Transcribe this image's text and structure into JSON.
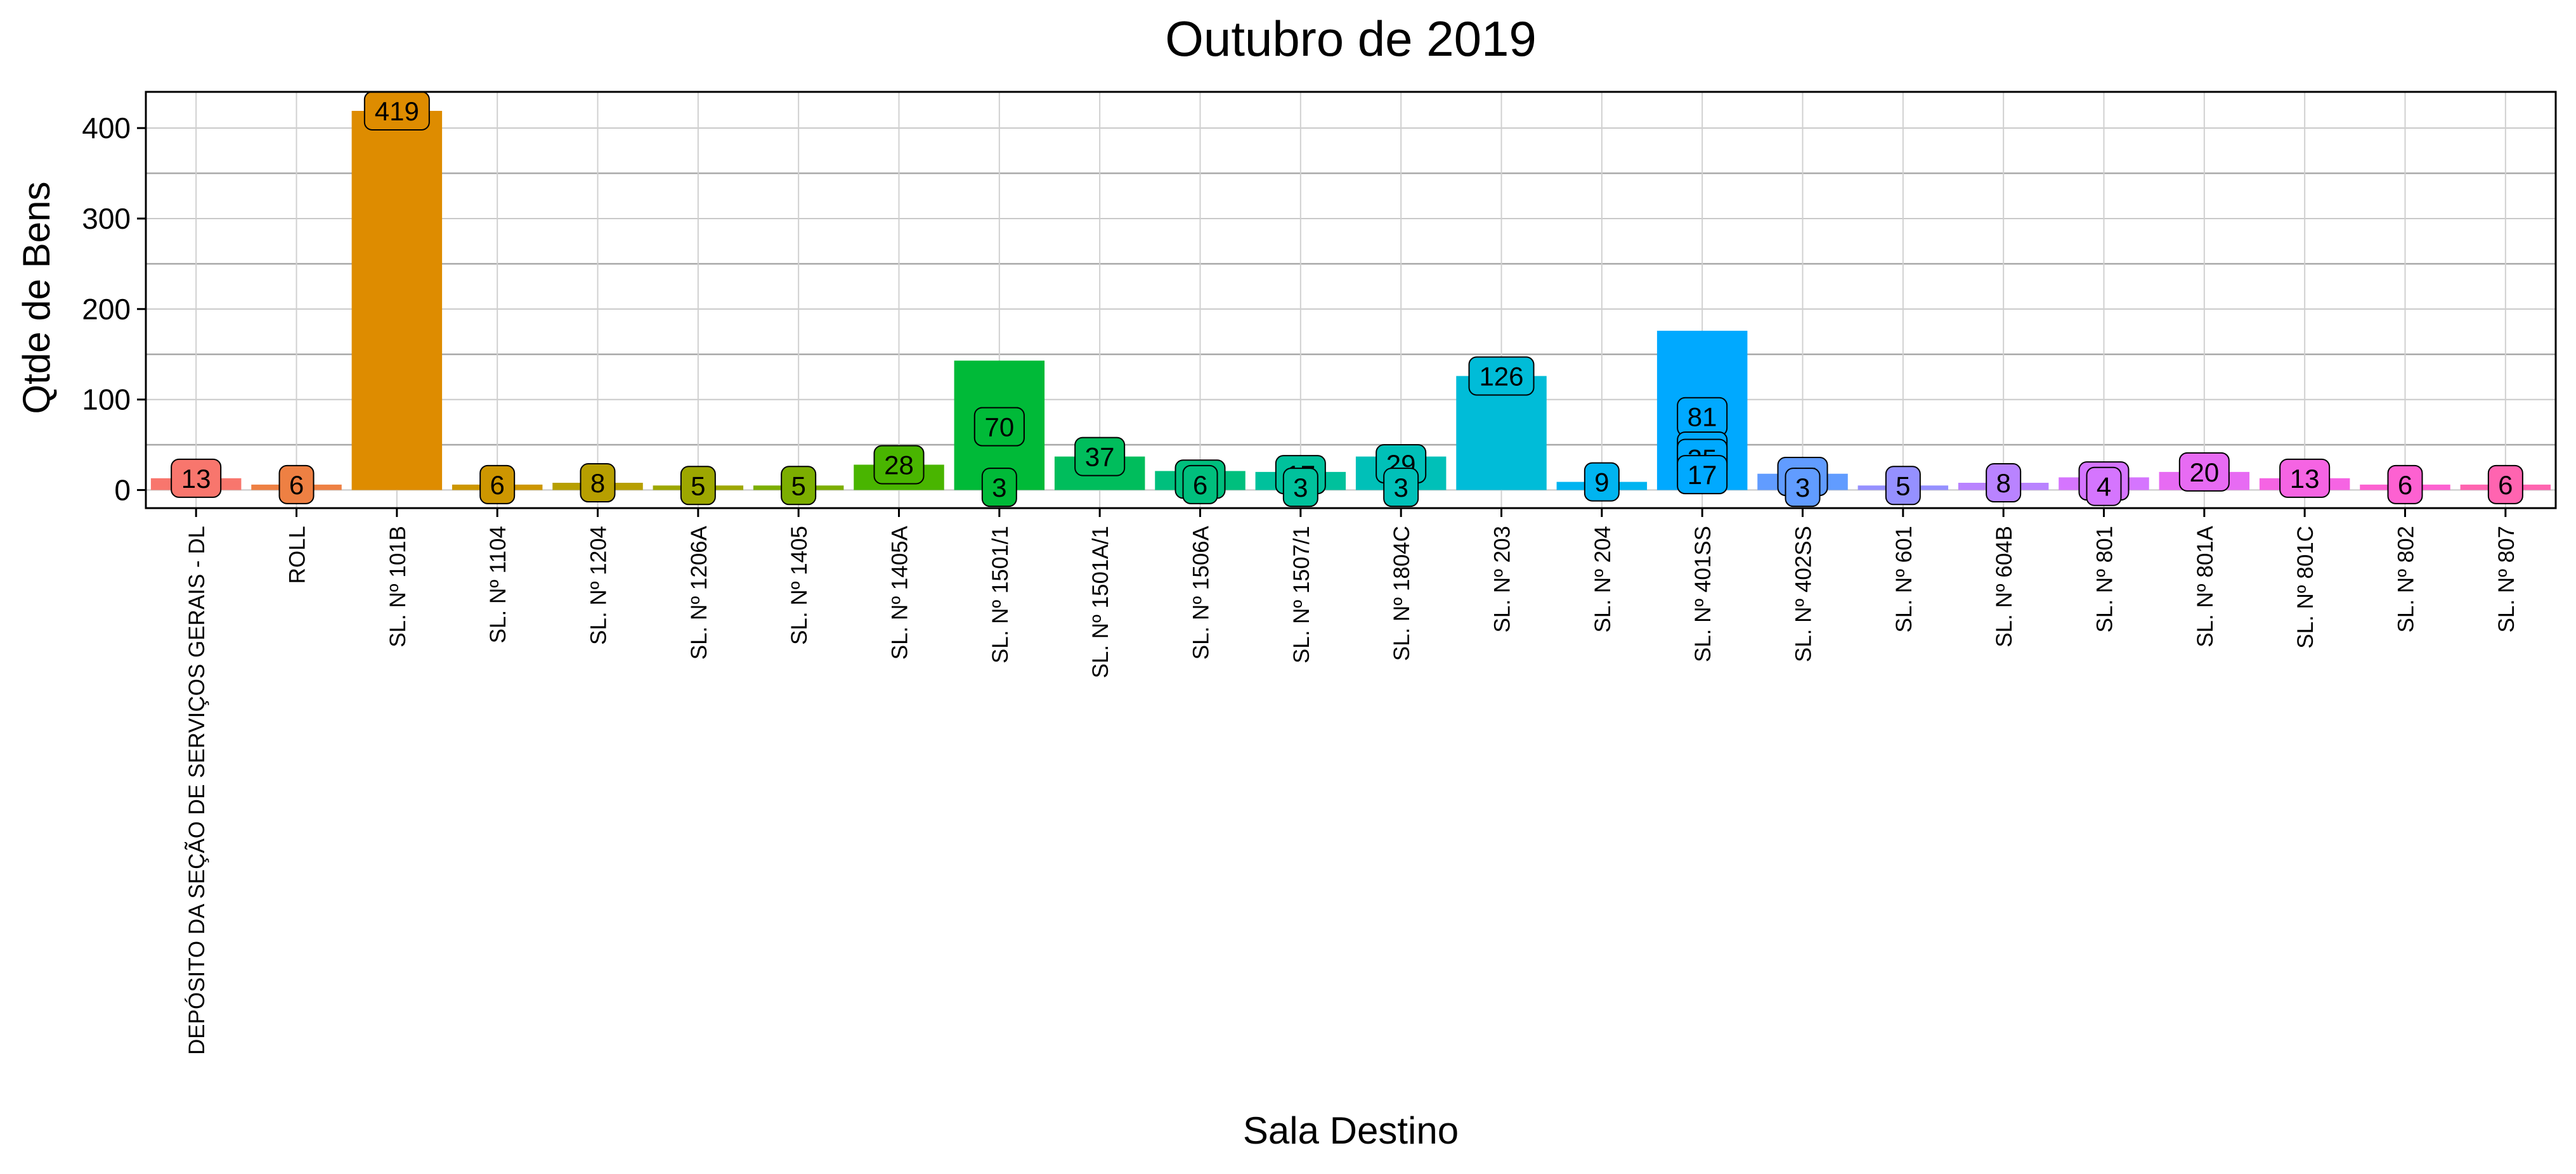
{
  "chart_data": {
    "type": "bar",
    "title": "Outubro  de  2019",
    "xlabel": "Sala Destino",
    "ylabel": "Qtde de Bens",
    "ylim": [
      -20,
      440
    ],
    "yticks": [
      0,
      100,
      200,
      300,
      400
    ],
    "grid": true,
    "legend": "none",
    "bars": [
      {
        "category": "DEPÓSITO DA SEÇÃO DE SERVIÇOS GERAIS - DL",
        "value": 13,
        "color": "#F8766D",
        "labels": [
          13
        ]
      },
      {
        "category": "ROLL",
        "value": 6,
        "color": "#EE8043",
        "labels": [
          6
        ]
      },
      {
        "category": "SL. Nº 101B",
        "value": 419,
        "color": "#DE8C00",
        "labels": [
          419
        ]
      },
      {
        "category": "SL. Nº 1104",
        "value": 6,
        "color": "#CD9600",
        "labels": [
          6
        ]
      },
      {
        "category": "SL. Nº 1204",
        "value": 8,
        "color": "#B79F00",
        "labels": [
          8
        ]
      },
      {
        "category": "SL. Nº 1206A",
        "value": 5,
        "color": "#9DA700",
        "labels": [
          5
        ]
      },
      {
        "category": "SL. Nº 1405",
        "value": 5,
        "color": "#7CAE00",
        "labels": [
          5
        ]
      },
      {
        "category": "SL. Nº 1405A",
        "value": 28,
        "color": "#49B500",
        "labels": [
          28
        ]
      },
      {
        "category": "SL. Nº 1501/1",
        "value": 143,
        "color": "#00BA38",
        "labels": [
          70,
          70,
          3
        ]
      },
      {
        "category": "SL. Nº 1501A/1",
        "value": 37,
        "color": "#00BD5C",
        "labels": [
          37
        ]
      },
      {
        "category": "SL. Nº 1506A",
        "value": 21,
        "color": "#00BF7D",
        "labels": [
          12,
          6
        ]
      },
      {
        "category": "SL. Nº 1507/1",
        "value": 20,
        "color": "#00C19C",
        "labels": [
          17,
          3
        ]
      },
      {
        "category": "SL. Nº 1804C",
        "value": 37,
        "color": "#00C0B8",
        "labels": [
          29,
          3
        ]
      },
      {
        "category": "SL. Nº 203",
        "value": 126,
        "color": "#00BCD8",
        "labels": [
          126
        ]
      },
      {
        "category": "SL. Nº 204",
        "value": 9,
        "color": "#00B4F0",
        "labels": [
          9
        ]
      },
      {
        "category": "SL. Nº 401SS",
        "value": 176,
        "color": "#00A9FF",
        "labels": [
          81,
          43,
          35,
          17
        ]
      },
      {
        "category": "SL. Nº 402SS",
        "value": 18,
        "color": "#619CFF",
        "labels": [
          15,
          3
        ]
      },
      {
        "category": "SL. Nº 601",
        "value": 5,
        "color": "#9590FF",
        "labels": [
          5
        ]
      },
      {
        "category": "SL. Nº 604B",
        "value": 8,
        "color": "#B983FF",
        "labels": [
          8
        ]
      },
      {
        "category": "SL. Nº 801",
        "value": 14,
        "color": "#D575FE",
        "labels": [
          10,
          4
        ]
      },
      {
        "category": "SL. Nº 801A",
        "value": 20,
        "color": "#E76BF3",
        "labels": [
          20
        ]
      },
      {
        "category": "SL. Nº 801C",
        "value": 13,
        "color": "#F564E3",
        "labels": [
          13
        ]
      },
      {
        "category": "SL. Nº 802",
        "value": 6,
        "color": "#FD61D1",
        "labels": [
          6
        ]
      },
      {
        "category": "SL. Nº 807",
        "value": 6,
        "color": "#FF64B0",
        "labels": [
          6
        ]
      }
    ]
  }
}
